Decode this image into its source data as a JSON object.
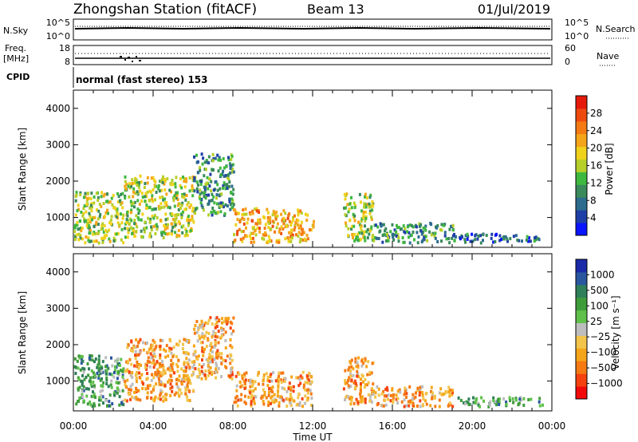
{
  "header": {
    "station": "Zhongshan Station (fitACF)",
    "beam": "Beam 13",
    "date": "01/Jul/2019"
  },
  "strips": {
    "nsky": {
      "label": "N.Sky",
      "ticks": [
        "10^5",
        "10^0"
      ]
    },
    "nsearch": {
      "label": "N.Search",
      "ticks": [
        "10^5",
        "10^0"
      ]
    },
    "freq": {
      "label_top": "Freq.",
      "label_unit": "[MHz]",
      "ticks": [
        "18",
        "8"
      ]
    },
    "nave": {
      "label": "Nave",
      "ticks": [
        "60",
        "0"
      ]
    },
    "cpid": {
      "label": "CPID",
      "value": "normal (fast stereo) 153"
    }
  },
  "colors": {
    "power": [
      "#0a14ff",
      "#1f3fa8",
      "#2d6b8f",
      "#3a8a5c",
      "#3fb83f",
      "#b6cf2a",
      "#f0d21c",
      "#f5a51a",
      "#f47a14",
      "#ee4a0e",
      "#e51a0a"
    ],
    "velocity": [
      "#f20a0a",
      "#f5420f",
      "#f57a14",
      "#f5a51a",
      "#f2c44a",
      "#bdbdbd",
      "#5fc04a",
      "#3f9c3a",
      "#2f7f5a",
      "#2a56a0",
      "#1a2aa8"
    ]
  },
  "chart_data": [
    {
      "type": "heatmap",
      "title": "",
      "xlabel": "Time UT",
      "ylabel": "Slant Range [km]",
      "xlim": [
        "00:00",
        "00:00"
      ],
      "x_ticks": [
        "00:00",
        "04:00",
        "08:00",
        "12:00",
        "16:00",
        "20:00",
        "00:00"
      ],
      "ylim": [
        180,
        4500
      ],
      "y_ticks": [
        1000,
        2000,
        3000,
        4000
      ],
      "colorbar": {
        "label": "Power [dB]",
        "range": [
          0,
          32
        ],
        "ticks": [
          4,
          8,
          12,
          16,
          20,
          24,
          28
        ]
      },
      "regions": [
        {
          "t": [
            0.0,
            2.5
          ],
          "r": [
            250,
            1650
          ],
          "level": "14"
        },
        {
          "t": [
            2.5,
            6.0
          ],
          "r": [
            400,
            2100
          ],
          "level": "16"
        },
        {
          "t": [
            6.0,
            8.0
          ],
          "r": [
            1000,
            2700
          ],
          "level": "10"
        },
        {
          "t": [
            8.0,
            12.0
          ],
          "r": [
            250,
            1200
          ],
          "level": "20"
        },
        {
          "t": [
            13.5,
            15.0
          ],
          "r": [
            300,
            1600
          ],
          "level": "14"
        },
        {
          "t": [
            15.0,
            19.0
          ],
          "r": [
            250,
            800
          ],
          "level": "8"
        },
        {
          "t": [
            19.0,
            23.5
          ],
          "r": [
            250,
            500
          ],
          "level": "6"
        }
      ]
    },
    {
      "type": "heatmap",
      "title": "",
      "xlabel": "Time UT",
      "ylabel": "Slant Range [km]",
      "xlim": [
        "00:00",
        "00:00"
      ],
      "x_ticks": [
        "00:00",
        "04:00",
        "08:00",
        "12:00",
        "16:00",
        "20:00",
        "00:00"
      ],
      "ylim": [
        180,
        4500
      ],
      "y_ticks": [
        1000,
        2000,
        3000,
        4000
      ],
      "colorbar": {
        "label": "Velocity [m s⁻¹]",
        "range": [
          -1250,
          1250
        ],
        "ticks": [
          "1000",
          "500",
          "100",
          "25",
          "−25",
          "−100",
          "−500",
          "−1000"
        ]
      },
      "regions": [
        {
          "t": [
            0.0,
            2.5
          ],
          "r": [
            250,
            1650
          ],
          "level": "100"
        },
        {
          "t": [
            2.5,
            6.0
          ],
          "r": [
            400,
            2100
          ],
          "level": "-100"
        },
        {
          "t": [
            6.0,
            8.0
          ],
          "r": [
            1000,
            2700
          ],
          "level": "-100"
        },
        {
          "t": [
            8.0,
            12.0
          ],
          "r": [
            250,
            1200
          ],
          "level": "-100"
        },
        {
          "t": [
            13.5,
            15.0
          ],
          "r": [
            300,
            1600
          ],
          "level": "-100"
        },
        {
          "t": [
            15.0,
            19.0
          ],
          "r": [
            250,
            800
          ],
          "level": "-100"
        },
        {
          "t": [
            19.0,
            23.5
          ],
          "r": [
            250,
            500
          ],
          "level": "100"
        }
      ]
    }
  ]
}
